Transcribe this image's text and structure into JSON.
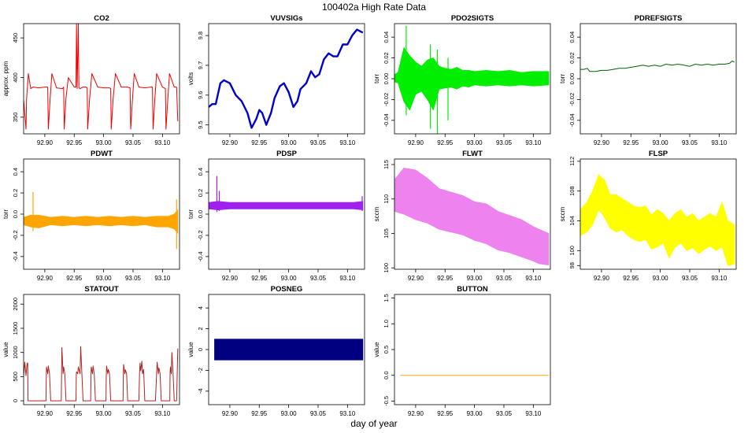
{
  "page": {
    "title": "100402a   High Rate Data",
    "xlabel": "day of year"
  },
  "chart_data": [
    {
      "type": "line",
      "title": "CO2",
      "ylabel": "approx. ppm",
      "xlabel": "",
      "xlim": [
        92.864,
        93.129
      ],
      "ylim": [
        329,
        468
      ],
      "xticks": [
        "92.90",
        "92.95",
        "93.00",
        "93.05",
        "93.10"
      ],
      "yticks": [
        "350",
        "400",
        "450"
      ],
      "color": "#ee0000",
      "grid": false,
      "series": [
        {
          "x": [
            92.864,
            92.868,
            92.869,
            92.872,
            92.876,
            92.88,
            92.89,
            92.9,
            92.905,
            92.906,
            92.909,
            92.912,
            92.92,
            92.93,
            92.932,
            92.933,
            92.936,
            92.94,
            92.95,
            92.953,
            92.954,
            92.955,
            92.957,
            92.958,
            92.96,
            92.965,
            92.97,
            92.972,
            92.973,
            92.976,
            92.98,
            92.99,
            93.0,
            93.01,
            93.012,
            93.013,
            93.016,
            93.02,
            93.03,
            93.04,
            93.045,
            93.046,
            93.049,
            93.052,
            93.06,
            93.07,
            93.08,
            93.083,
            93.084,
            93.087,
            93.09,
            93.1,
            93.105,
            93.106,
            93.109,
            93.112,
            93.12,
            93.124,
            93.126
          ],
          "y": [
            372,
            335,
            372,
            405,
            386,
            388,
            387,
            388,
            388,
            335,
            372,
            405,
            387,
            386,
            388,
            335,
            374,
            400,
            388,
            388,
            468,
            386,
            468,
            387,
            386,
            388,
            388,
            387,
            335,
            372,
            405,
            388,
            387,
            387,
            386,
            335,
            372,
            405,
            388,
            388,
            387,
            335,
            372,
            405,
            388,
            387,
            388,
            388,
            335,
            372,
            405,
            388,
            386,
            335,
            372,
            405,
            388,
            388,
            345
          ]
        }
      ]
    },
    {
      "type": "line",
      "title": "VUVSIGs",
      "ylabel": "volts",
      "xlabel": "",
      "xlim": [
        92.864,
        93.129
      ],
      "ylim": [
        9.47,
        9.84
      ],
      "xticks": [
        "92.90",
        "92.95",
        "93.00",
        "93.05",
        "93.10"
      ],
      "yticks": [
        "9.5",
        "9.6",
        "9.7",
        "9.8"
      ],
      "color": "#0000cd",
      "grid": false,
      "series": [
        {
          "x": [
            92.864,
            92.87,
            92.876,
            92.884,
            92.89,
            92.9,
            92.91,
            92.92,
            92.93,
            92.937,
            92.945,
            92.95,
            92.955,
            92.962,
            92.97,
            92.976,
            92.985,
            92.992,
            93.0,
            93.008,
            93.015,
            93.02,
            93.03,
            93.038,
            93.045,
            93.052,
            93.06,
            93.068,
            93.076,
            93.083,
            93.092,
            93.1,
            93.108,
            93.116,
            93.126
          ],
          "y": [
            9.56,
            9.57,
            9.57,
            9.64,
            9.65,
            9.64,
            9.6,
            9.58,
            9.54,
            9.49,
            9.52,
            9.55,
            9.54,
            9.5,
            9.54,
            9.59,
            9.63,
            9.64,
            9.61,
            9.56,
            9.58,
            9.62,
            9.64,
            9.68,
            9.66,
            9.67,
            9.72,
            9.74,
            9.73,
            9.73,
            9.77,
            9.77,
            9.8,
            9.82,
            9.81
          ]
        }
      ]
    },
    {
      "type": "line",
      "title": "PDO2SIGTS",
      "ylabel": "torr",
      "xlabel": "",
      "xlim": [
        92.864,
        93.129
      ],
      "ylim": [
        -0.053,
        0.053
      ],
      "xticks": [
        "92.90",
        "92.95",
        "93.00",
        "93.05",
        "93.10"
      ],
      "yticks": [
        "-0.04",
        "-0.02",
        "0.00",
        "0.02",
        "0.04"
      ],
      "color": "#00ee00",
      "grid": false,
      "band": {
        "x": [
          92.864,
          92.87,
          92.88,
          92.89,
          92.9,
          92.91,
          92.92,
          92.93,
          92.94,
          92.95,
          92.96,
          92.97,
          92.98,
          92.99,
          93.0,
          93.02,
          93.04,
          93.06,
          93.08,
          93.1,
          93.126
        ],
        "lo": [
          -0.003,
          -0.004,
          -0.022,
          -0.03,
          -0.015,
          -0.012,
          -0.02,
          -0.03,
          -0.01,
          -0.009,
          -0.008,
          -0.01,
          -0.007,
          -0.008,
          -0.006,
          -0.007,
          -0.006,
          -0.007,
          -0.006,
          -0.007,
          -0.006
        ],
        "hi": [
          0.004,
          0.006,
          0.03,
          0.022,
          0.016,
          0.012,
          0.018,
          0.02,
          0.012,
          0.01,
          0.009,
          0.011,
          0.008,
          0.008,
          0.007,
          0.008,
          0.007,
          0.008,
          0.006,
          0.007,
          0.007
        ]
      },
      "spikes": [
        {
          "x": 92.884,
          "lo": -0.035,
          "hi": 0.051
        },
        {
          "x": 92.925,
          "lo": -0.048,
          "hi": 0.033
        },
        {
          "x": 92.937,
          "lo": -0.053,
          "hi": 0.028
        },
        {
          "x": 92.955,
          "lo": -0.04,
          "hi": 0.02
        }
      ]
    },
    {
      "type": "line",
      "title": "PDREFSIGTS",
      "ylabel": "torr",
      "xlabel": "",
      "xlim": [
        92.864,
        93.129
      ],
      "ylim": [
        -0.053,
        0.053
      ],
      "xticks": [
        "92.90",
        "92.95",
        "93.00",
        "93.05",
        "93.10"
      ],
      "yticks": [
        "-0.04",
        "-0.02",
        "0.00",
        "0.02",
        "0.04"
      ],
      "color": "#006400",
      "grid": false,
      "series": [
        {
          "x": [
            92.864,
            92.87,
            92.876,
            92.88,
            92.886,
            92.89,
            92.9,
            92.91,
            92.92,
            92.93,
            92.94,
            92.95,
            92.96,
            92.97,
            92.98,
            92.99,
            93.0,
            93.01,
            93.02,
            93.03,
            93.04,
            93.05,
            93.06,
            93.07,
            93.08,
            93.09,
            93.1,
            93.11,
            93.118,
            93.122,
            93.126
          ],
          "y": [
            0.009,
            0.009,
            0.01,
            0.007,
            0.007,
            0.007,
            0.008,
            0.008,
            0.009,
            0.01,
            0.01,
            0.011,
            0.012,
            0.013,
            0.012,
            0.013,
            0.012,
            0.014,
            0.013,
            0.014,
            0.013,
            0.012,
            0.014,
            0.013,
            0.014,
            0.013,
            0.014,
            0.014,
            0.015,
            0.017,
            0.016
          ]
        }
      ]
    },
    {
      "type": "line",
      "title": "PDWT",
      "ylabel": "torr",
      "xlabel": "",
      "xlim": [
        92.864,
        93.129
      ],
      "ylim": [
        -0.52,
        0.52
      ],
      "xticks": [
        "92.90",
        "92.95",
        "93.00",
        "93.05",
        "93.10"
      ],
      "yticks": [
        "-0.4",
        "-0.2",
        "0.0",
        "0.2",
        "0.4"
      ],
      "color": "#ffa500",
      "grid": false,
      "band": {
        "x": [
          92.864,
          92.876,
          92.89,
          92.91,
          92.93,
          92.95,
          92.97,
          92.99,
          93.01,
          93.03,
          93.05,
          93.07,
          93.09,
          93.11,
          93.12,
          93.126
        ],
        "lo": [
          -0.1,
          -0.12,
          -0.13,
          -0.1,
          -0.11,
          -0.1,
          -0.11,
          -0.1,
          -0.11,
          -0.1,
          -0.11,
          -0.1,
          -0.12,
          -0.12,
          -0.14,
          -0.18
        ],
        "hi": [
          -0.03,
          -0.01,
          -0.01,
          -0.03,
          -0.02,
          -0.03,
          -0.02,
          -0.03,
          -0.02,
          -0.03,
          -0.02,
          -0.03,
          -0.02,
          -0.02,
          0.0,
          0.04
        ]
      },
      "spikes": [
        {
          "x": 92.88,
          "lo": -0.16,
          "hi": 0.21
        },
        {
          "x": 93.124,
          "lo": -0.33,
          "hi": 0.14
        }
      ]
    },
    {
      "type": "line",
      "title": "PDSP",
      "ylabel": "torr",
      "xlabel": "",
      "xlim": [
        92.864,
        93.129
      ],
      "ylim": [
        -0.52,
        0.52
      ],
      "xticks": [
        "92.90",
        "92.95",
        "93.00",
        "93.05",
        "93.10"
      ],
      "yticks": [
        "-0.4",
        "-0.2",
        "0.0",
        "0.2",
        "0.4"
      ],
      "color": "#a020f0",
      "grid": false,
      "band": {
        "x": [
          92.864,
          92.88,
          92.9,
          92.93,
          92.96,
          92.99,
          93.02,
          93.05,
          93.08,
          93.11,
          93.126
        ],
        "lo": [
          0.05,
          0.04,
          0.05,
          0.05,
          0.05,
          0.05,
          0.05,
          0.05,
          0.05,
          0.05,
          0.04
        ],
        "hi": [
          0.11,
          0.12,
          0.11,
          0.11,
          0.11,
          0.11,
          0.11,
          0.11,
          0.11,
          0.11,
          0.12
        ]
      },
      "spikes": [
        {
          "x": 92.878,
          "lo": 0.02,
          "hi": 0.36
        },
        {
          "x": 92.882,
          "lo": 0.03,
          "hi": 0.22
        },
        {
          "x": 93.125,
          "lo": 0.03,
          "hi": 0.17
        }
      ]
    },
    {
      "type": "line",
      "title": "FLWT",
      "ylabel": "sccm",
      "xlabel": "",
      "xlim": [
        92.864,
        93.129
      ],
      "ylim": [
        99.8,
        115.8
      ],
      "xticks": [
        "92.90",
        "92.95",
        "93.00",
        "93.05",
        "93.10"
      ],
      "yticks": [
        "100",
        "105",
        "110",
        "115"
      ],
      "color": "#ee82ee",
      "grid": false,
      "band": {
        "x": [
          92.864,
          92.88,
          92.9,
          92.92,
          92.94,
          92.96,
          92.98,
          93.0,
          93.02,
          93.04,
          93.06,
          93.08,
          93.1,
          93.11,
          93.126
        ],
        "lo": [
          108.2,
          107.8,
          107.0,
          106.5,
          105.6,
          105.2,
          104.8,
          104.0,
          103.5,
          102.6,
          102.2,
          101.6,
          101.0,
          100.6,
          100.4
        ],
        "hi": [
          112.8,
          114.5,
          114.2,
          113.0,
          111.5,
          111.0,
          110.5,
          109.6,
          109.3,
          108.2,
          107.6,
          107.0,
          106.0,
          105.6,
          105.0
        ]
      }
    },
    {
      "type": "line",
      "title": "FLSP",
      "ylabel": "sccm",
      "xlabel": "",
      "xlim": [
        92.864,
        93.129
      ],
      "ylim": [
        97.5,
        112.3
      ],
      "xticks": [
        "92.90",
        "92.95",
        "93.00",
        "93.05",
        "93.10"
      ],
      "yticks": [
        "98",
        "100",
        "104",
        "108",
        "112"
      ],
      "color": "#ffff00",
      "grid": false,
      "band": {
        "x": [
          92.864,
          92.875,
          92.885,
          92.895,
          92.905,
          92.915,
          92.925,
          92.935,
          92.945,
          92.955,
          92.965,
          92.975,
          92.985,
          92.995,
          93.005,
          93.015,
          93.025,
          93.035,
          93.045,
          93.055,
          93.065,
          93.075,
          93.085,
          93.095,
          93.105,
          93.115,
          93.126
        ],
        "lo": [
          102.0,
          102.5,
          103.5,
          105.5,
          104.5,
          103.0,
          102.5,
          102.8,
          102.0,
          101.5,
          101.2,
          101.5,
          100.2,
          100.5,
          101.0,
          99.0,
          100.5,
          101.0,
          100.0,
          100.4,
          99.6,
          100.2,
          100.6,
          100.0,
          100.5,
          98.0,
          98.2
        ],
        "hi": [
          105.5,
          106.5,
          108.0,
          110.2,
          109.5,
          107.5,
          107.5,
          107.0,
          106.5,
          106.0,
          105.8,
          106.0,
          104.8,
          105.5,
          105.0,
          104.0,
          105.0,
          105.5,
          104.5,
          105.0,
          104.0,
          104.5,
          105.0,
          104.5,
          106.5,
          104.0,
          103.5
        ]
      }
    },
    {
      "type": "line",
      "title": "STATOUT",
      "ylabel": "value",
      "xlabel": "",
      "xlim": [
        92.864,
        93.129
      ],
      "ylim": [
        -80,
        2200
      ],
      "xticks": [
        "92.90",
        "92.95",
        "93.00",
        "93.05",
        "93.10"
      ],
      "yticks": [
        "0",
        "500",
        "1000",
        "1500",
        "2000"
      ],
      "color": "#b22222",
      "grid": false,
      "series": [
        {
          "x": [
            92.864,
            92.866,
            92.868,
            92.869,
            92.87,
            92.871,
            92.8715,
            92.872,
            92.874,
            92.88,
            92.9,
            92.902,
            92.9025,
            92.903,
            92.905,
            92.906,
            92.908,
            92.91,
            92.925,
            92.928,
            92.9285,
            92.929,
            92.931,
            92.932,
            92.934,
            92.936,
            92.95,
            92.953,
            92.9535,
            92.954,
            92.956,
            92.957,
            92.96,
            92.961,
            92.963,
            92.965,
            92.975,
            92.978,
            92.9785,
            92.979,
            92.981,
            92.982,
            92.984,
            92.986,
            93.0,
            93.004,
            93.0045,
            93.005,
            93.007,
            93.008,
            93.01,
            93.012,
            93.03,
            93.033,
            93.0335,
            93.034,
            93.036,
            93.037,
            93.039,
            93.041,
            93.055,
            93.06,
            93.061,
            93.062,
            93.063,
            93.065,
            93.066,
            93.068,
            93.07,
            93.085,
            93.088,
            93.09,
            93.091,
            93.093,
            93.094,
            93.096,
            93.098,
            93.11,
            93.1125,
            93.113,
            93.1135,
            93.115,
            93.116,
            93.118,
            93.12,
            93.122,
            93.124,
            93.126
          ],
          "y": [
            520,
            800,
            520,
            650,
            780,
            780,
            0,
            0,
            0,
            0,
            0,
            0,
            500,
            700,
            560,
            720,
            560,
            0,
            0,
            0,
            560,
            1100,
            560,
            700,
            560,
            0,
            0,
            0,
            550,
            600,
            560,
            700,
            560,
            1120,
            560,
            0,
            0,
            0,
            550,
            700,
            560,
            720,
            560,
            0,
            0,
            0,
            550,
            720,
            560,
            650,
            560,
            0,
            0,
            0,
            550,
            750,
            560,
            640,
            560,
            0,
            0,
            0,
            560,
            780,
            620,
            820,
            560,
            650,
            0,
            0,
            0,
            560,
            800,
            560,
            680,
            560,
            0,
            0,
            0,
            560,
            700,
            560,
            1000,
            560,
            0,
            0,
            0,
            1080
          ]
        }
      ]
    },
    {
      "type": "line",
      "title": "POSNEG",
      "ylabel": "value",
      "xlabel": "",
      "xlim": [
        92.864,
        93.129
      ],
      "ylim": [
        -5.3,
        5.3
      ],
      "xticks": [
        "92.90",
        "92.95",
        "93.00",
        "93.05",
        "93.10"
      ],
      "yticks": [
        "-4",
        "-2",
        "0",
        "2",
        "4"
      ],
      "color": "#000080",
      "grid": false,
      "band": {
        "x": [
          92.874,
          93.126
        ],
        "lo": [
          -1,
          -1
        ],
        "hi": [
          1,
          1
        ]
      }
    },
    {
      "type": "line",
      "title": "BUTTON",
      "ylabel": "value",
      "xlabel": "",
      "xlim": [
        92.864,
        93.129
      ],
      "ylim": [
        -0.57,
        1.57
      ],
      "xticks": [
        "92.90",
        "92.95",
        "93.00",
        "93.05",
        "93.10"
      ],
      "yticks": [
        "-0.5",
        "0.0",
        "0.5",
        "1.0",
        "1.5"
      ],
      "color": "#ffa500",
      "grid": false,
      "series": [
        {
          "x": [
            92.874,
            93.126
          ],
          "y": [
            0,
            0
          ]
        }
      ]
    }
  ]
}
